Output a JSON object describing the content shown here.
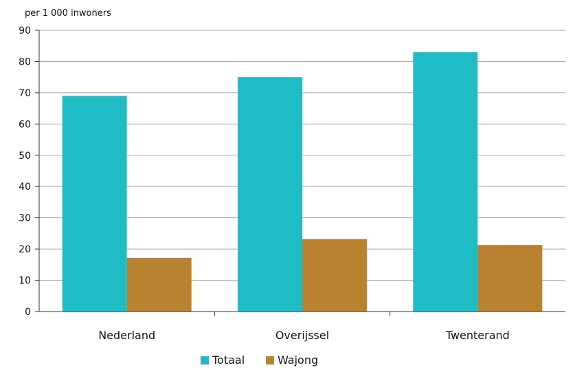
{
  "chart_data": {
    "type": "bar",
    "unit_label": "per 1 000 inwoners",
    "categories": [
      "Nederland",
      "Overijssel",
      "Twenterand"
    ],
    "series": [
      {
        "name": "Totaal",
        "values": [
          69,
          75,
          83
        ],
        "color": "#1fbcc6"
      },
      {
        "name": "Wajong",
        "values": [
          17.2,
          23.2,
          21.3
        ],
        "color": "#b88230"
      }
    ],
    "ylim": [
      0,
      90
    ],
    "yticks": [
      "0",
      "10",
      "20",
      "30",
      "40",
      "50",
      "60",
      "70",
      "80",
      "90"
    ],
    "grid": true,
    "legend_position": "bottom-center"
  }
}
